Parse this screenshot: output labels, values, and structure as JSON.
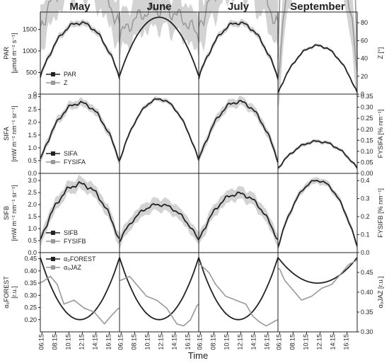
{
  "chart_data": {
    "type": "line",
    "months": [
      "May",
      "June",
      "July",
      "September"
    ],
    "xlabel": "Time",
    "x_ticks": [
      "06:15",
      "08:15",
      "10:15",
      "12:15",
      "14:15",
      "16:15"
    ],
    "x_range_hours": [
      6.0,
      17.75
    ],
    "colors": {
      "primary": "#222222",
      "secondary": "#999999",
      "band": "#c8c8c8"
    },
    "rows": [
      {
        "key": "par",
        "left_label": [
          "PAR",
          "[µmol m⁻² s⁻¹]"
        ],
        "right_label": [
          "Z [°]"
        ],
        "left_range": [
          0,
          1900
        ],
        "left_ticks": [
          0,
          500,
          1000,
          1500
        ],
        "right_range": [
          0,
          92
        ],
        "right_ticks": [
          0,
          20,
          40,
          60,
          80
        ],
        "legend": [
          "PAR",
          "Z"
        ],
        "legend_pos": "bottom-left",
        "panels": [
          {
            "primary": {
              "peak": 1650,
              "low": 400,
              "noise": 50,
              "band": 80
            },
            "secondary": {
              "peak": 1200,
              "low": 420,
              "noise": 8,
              "band": 0
            }
          },
          {
            "primary": {
              "peak": 1780,
              "low": 420,
              "noise": 0,
              "band": 0
            },
            "secondary": {
              "peak": 1300,
              "low": 430,
              "noise": 0,
              "band": 0
            }
          },
          {
            "primary": {
              "peak": 1650,
              "low": 380,
              "noise": 50,
              "band": 80
            },
            "secondary": {
              "peak": 1200,
              "low": 400,
              "noise": 8,
              "band": 0
            }
          },
          {
            "primary": {
              "peak": 1120,
              "low": 30,
              "noise": 30,
              "band": 40
            },
            "secondary": {
              "peak": 800,
              "low": 40,
              "noise": 0,
              "band": 0
            }
          }
        ]
      },
      {
        "key": "sifa",
        "left_label": [
          "SIFA",
          "[mW m⁻² nm⁻¹ sr⁻¹]"
        ],
        "right_label": [
          "FYSIFA [% nm⁻¹]"
        ],
        "left_range": [
          0,
          3.1
        ],
        "left_ticks": [
          0.0,
          0.5,
          1.0,
          1.5,
          2.0,
          2.5,
          3.0
        ],
        "right_range": [
          0,
          0.36
        ],
        "right_ticks": [
          0.0,
          0.05,
          0.1,
          0.15,
          0.2,
          0.25,
          0.3,
          0.35
        ],
        "legend": [
          "SIFA",
          "FYSIFA"
        ],
        "legend_pos": "bottom-left",
        "panels": [
          {
            "primary": {
              "peak": 2.75,
              "low": 0.5,
              "noise": 0.09,
              "band": 0.18
            },
            "secondary": {
              "peak": 1.95,
              "low": 1.45,
              "noise": 0.06,
              "band": 0.12
            }
          },
          {
            "primary": {
              "peak": 2.9,
              "low": 0.5,
              "noise": 0.05,
              "band": 0.1
            },
            "secondary": {
              "peak": 2.1,
              "low": 1.75,
              "noise": 0.03,
              "band": 0.05
            }
          },
          {
            "primary": {
              "peak": 2.8,
              "low": 0.5,
              "noise": 0.09,
              "band": 0.2
            },
            "secondary": {
              "peak": 2.0,
              "low": 1.55,
              "noise": 0.06,
              "band": 0.1
            }
          },
          {
            "primary": {
              "peak": 1.25,
              "low": 0.2,
              "noise": 0.05,
              "band": 0.08
            },
            "secondary": {
              "peak": 1.35,
              "low": 0.45,
              "noise": 0.05,
              "band": 0.15
            }
          }
        ]
      },
      {
        "key": "sifb",
        "left_label": [
          "SIFB",
          "[mW m⁻² nm⁻¹ sr⁻¹]"
        ],
        "right_label": [
          "FYSIFB [% nm⁻¹]"
        ],
        "left_range": [
          0,
          3.3
        ],
        "left_ticks": [
          0.0,
          0.5,
          1.0,
          1.5,
          2.0,
          2.5,
          3.0
        ],
        "right_range": [
          0,
          0.44
        ],
        "right_ticks": [
          0.0,
          0.1,
          0.2,
          0.3,
          0.4
        ],
        "legend": [
          "SIFB",
          "FYSIFB"
        ],
        "legend_pos": "bottom-left",
        "panels": [
          {
            "primary": {
              "peak": 2.85,
              "low": 0.5,
              "noise": 0.12,
              "band": 0.3
            },
            "secondary": {
              "peak": 1.55,
              "low": 1.25,
              "noise": 0.06,
              "band": 0.15
            }
          },
          {
            "primary": {
              "peak": 2.0,
              "low": 0.5,
              "noise": 0.08,
              "band": 0.3
            },
            "secondary": {
              "peak": 1.35,
              "low": 1.2,
              "noise": 0.05,
              "band": 0.12
            }
          },
          {
            "primary": {
              "peak": 2.45,
              "low": 0.5,
              "noise": 0.1,
              "band": 0.3
            },
            "secondary": {
              "peak": 1.55,
              "low": 1.25,
              "noise": 0.06,
              "band": 0.15
            }
          },
          {
            "primary": {
              "peak": 3.0,
              "low": 0.25,
              "noise": 0.06,
              "band": 0.15
            },
            "secondary": {
              "peak": 2.8,
              "low": 1.7,
              "noise": 0.08,
              "band": 0.3
            }
          }
        ]
      },
      {
        "key": "alpha",
        "left_label": [
          "α₀FOREST",
          "[r.u.]"
        ],
        "right_label": [
          "α₀JAZ [r.u.]"
        ],
        "left_range": [
          0.15,
          0.475
        ],
        "left_ticks": [
          0.2,
          0.25,
          0.3,
          0.35,
          0.4,
          0.45
        ],
        "right_range": [
          0.3,
          0.5
        ],
        "right_ticks": [
          0.3,
          0.35,
          0.4,
          0.45
        ],
        "legend": [
          "α₀FOREST",
          "α₀JAZ"
        ],
        "legend_pos": "top-left",
        "panels": [
          {
            "primary": {
              "peak": 0.2,
              "low": 0.455,
              "noise": 0,
              "band": 0
            },
            "secondary_points": [
              [
                6.2,
                0.425
              ],
              [
                7.5,
                0.44
              ],
              [
                8.5,
                0.42
              ],
              [
                9.5,
                0.37
              ],
              [
                11.0,
                0.38
              ],
              [
                12.5,
                0.36
              ],
              [
                14.0,
                0.35
              ],
              [
                15.5,
                0.32
              ],
              [
                16.5,
                0.34
              ],
              [
                17.6,
                0.36
              ]
            ]
          },
          {
            "primary": {
              "peak": 0.2,
              "low": 0.455,
              "noise": 0,
              "band": 0
            },
            "secondary_points": [
              [
                6.2,
                0.43
              ],
              [
                7.5,
                0.44
              ],
              [
                8.5,
                0.42
              ],
              [
                10.0,
                0.39
              ],
              [
                11.5,
                0.38
              ],
              [
                13.0,
                0.36
              ],
              [
                14.5,
                0.32
              ],
              [
                15.5,
                0.315
              ],
              [
                16.5,
                0.33
              ],
              [
                17.6,
                0.37
              ]
            ]
          },
          {
            "primary": {
              "peak": 0.2,
              "low": 0.455,
              "noise": 0,
              "band": 0
            },
            "secondary_points": [
              [
                6.2,
                0.47
              ],
              [
                7.5,
                0.45
              ],
              [
                8.5,
                0.42
              ],
              [
                10.0,
                0.39
              ],
              [
                11.5,
                0.38
              ],
              [
                13.0,
                0.37
              ],
              [
                14.0,
                0.34
              ],
              [
                15.0,
                0.325
              ],
              [
                16.0,
                0.315
              ],
              [
                17.6,
                0.33
              ]
            ]
          },
          {
            "primary": {
              "peak": 0.35,
              "low": 0.455,
              "noise": 0,
              "band": 0
            },
            "secondary_points": [
              [
                6.2,
                0.46
              ],
              [
                7.0,
                0.43
              ],
              [
                8.0,
                0.41
              ],
              [
                9.5,
                0.38
              ],
              [
                11.0,
                0.39
              ],
              [
                12.5,
                0.41
              ],
              [
                14.0,
                0.42
              ],
              [
                15.0,
                0.44
              ],
              [
                16.5,
                0.47
              ],
              [
                17.6,
                0.48
              ]
            ]
          }
        ]
      }
    ]
  }
}
